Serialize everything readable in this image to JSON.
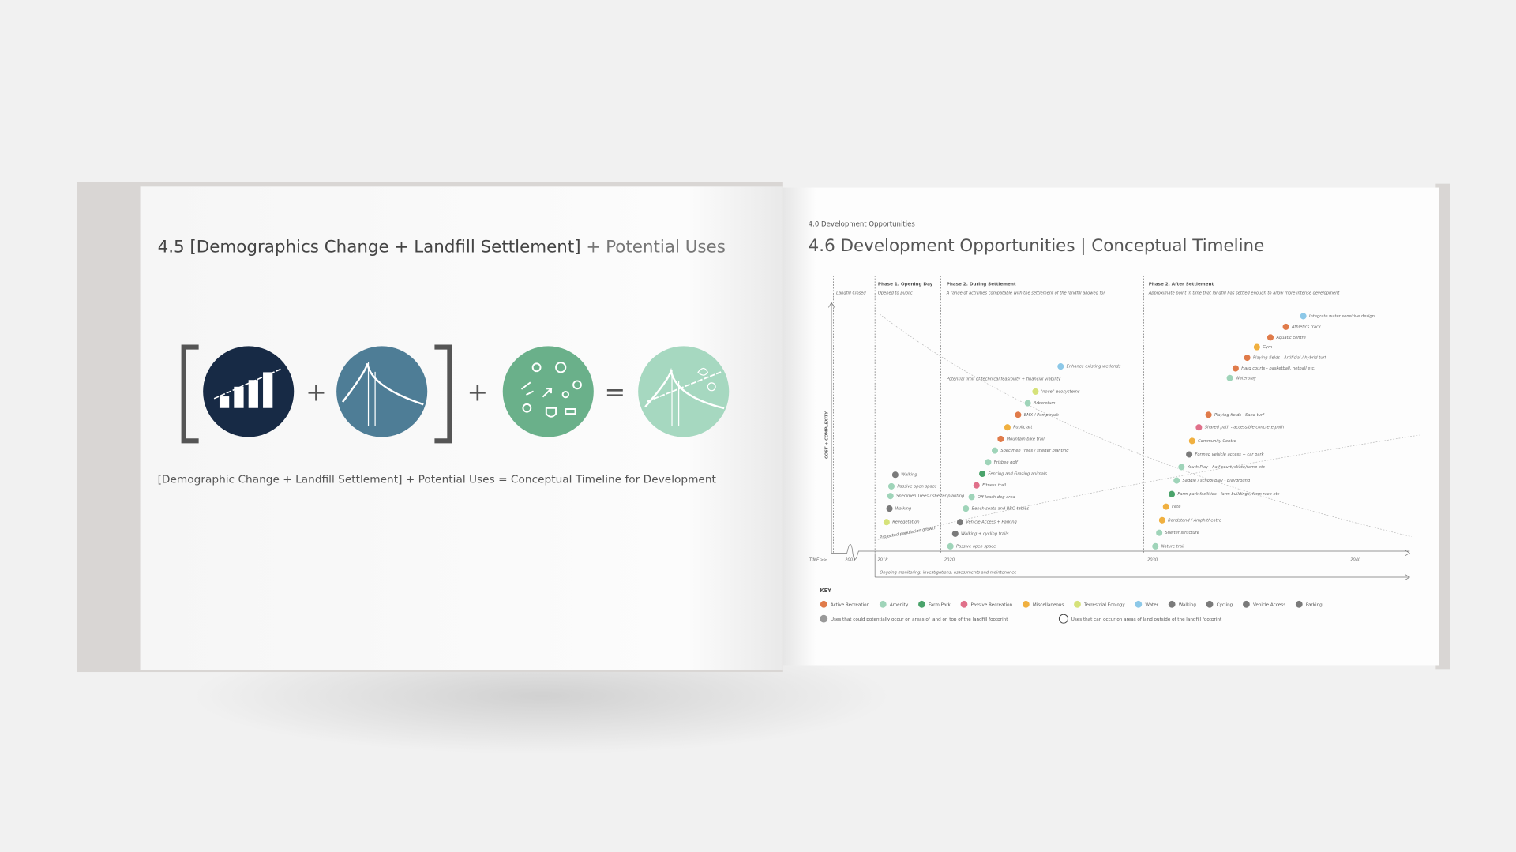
{
  "left_page": {
    "title": "4.5 [Demographics Change + Landfill Settlement]",
    "title_suffix": "+ Potential Uses",
    "caption": "[Demographic Change + Landfill Settlement] + Potential Uses = Conceptual Timeline for Development"
  },
  "right_page": {
    "section": "4.0 Development Opportunities",
    "title": "4.6 Development Opportunities | Conceptual Timeline",
    "y_axis_label": "COST + COMPLEXITY",
    "x_axis_label": "TIME >>",
    "years": [
      "2003",
      "2018",
      "2020",
      "2030",
      "2040"
    ],
    "landfill_closed": "Landfill Closed",
    "phases": [
      {
        "title": "Phase 1. Opening Day",
        "subtitle": "Opened to public"
      },
      {
        "title": "Phase 2. During Settlement",
        "subtitle": "A range of activities compatable with the settlement of the landfill allowed for"
      },
      {
        "title": "Phase 2. After Settlement",
        "subtitle": "Approximate point in time that landfill has settled enough to allow more intense development"
      }
    ],
    "limit_label": "Potential limit of technical feasibility + financial viability",
    "population_label": "Projected population growth",
    "monitoring_label": "Ongoing monitoring, investigations, assessments and maintenance",
    "items": [
      {
        "label": "Walking",
        "category": "Walking"
      },
      {
        "label": "Passive open space",
        "category": "Amenity"
      },
      {
        "label": "Specimen Trees / shelter planting",
        "category": "Amenity"
      },
      {
        "label": "Walking",
        "category": "Walking"
      },
      {
        "label": "Revegetation",
        "category": "Terrestrial Ecology"
      },
      {
        "label": "Passive open space",
        "category": "Amenity"
      },
      {
        "label": "Walking + cycling trails",
        "category": "Cycling"
      },
      {
        "label": "Vehicle Access + Parking",
        "category": "Vehicle Access"
      },
      {
        "label": "Bench seats and BBQ tables",
        "category": "Amenity"
      },
      {
        "label": "Off-leash dog area",
        "category": "Amenity"
      },
      {
        "label": "Fitness trail",
        "category": "Passive Recreation"
      },
      {
        "label": "Fencing and Grazing animals",
        "category": "Farm Park"
      },
      {
        "label": "Frisbee golf",
        "category": "Amenity"
      },
      {
        "label": "Specimen Trees / shelter planting",
        "category": "Amenity"
      },
      {
        "label": "Mountain bike trail",
        "category": "Active Recreation"
      },
      {
        "label": "Public art",
        "category": "Miscellaneous"
      },
      {
        "label": "BMX / Pumptrack",
        "category": "Active Recreation"
      },
      {
        "label": "Arboretum",
        "category": "Amenity"
      },
      {
        "label": "'novel' ecosystems",
        "category": "Terrestrial Ecology"
      },
      {
        "label": "Enhance existing wetlands",
        "category": "Water"
      },
      {
        "label": "Nature trail",
        "category": "Amenity"
      },
      {
        "label": "Shelter structure",
        "category": "Amenity"
      },
      {
        "label": "Bandstand / Amphitheatre",
        "category": "Miscellaneous"
      },
      {
        "label": "Fete",
        "category": "Miscellaneous"
      },
      {
        "label": "Farm park facilities - farm buildings, farm race etc",
        "category": "Farm Park"
      },
      {
        "label": "Saddle / school play - playground",
        "category": "Amenity"
      },
      {
        "label": "Youth Play - half court, skate/ramp etc",
        "category": "Amenity"
      },
      {
        "label": "Formed vehicle access + car park",
        "category": "Vehicle Access"
      },
      {
        "label": "Community Centre",
        "category": "Miscellaneous"
      },
      {
        "label": "Shared path - accessible concrete path",
        "category": "Passive Recreation"
      },
      {
        "label": "Playing fields - Sand turf",
        "category": "Active Recreation"
      },
      {
        "label": "Waterplay",
        "category": "Amenity"
      },
      {
        "label": "Hard courts - basketball, netball etc.",
        "category": "Active Recreation"
      },
      {
        "label": "Playing fields - Artificial / hybrid turf",
        "category": "Active Recreation"
      },
      {
        "label": "Gym",
        "category": "Miscellaneous"
      },
      {
        "label": "Aquatic centre",
        "category": "Active Recreation"
      },
      {
        "label": "Athletics track",
        "category": "Active Recreation"
      },
      {
        "label": "Integrate water sensitive design",
        "category": "Water"
      }
    ],
    "key": {
      "title": "KEY",
      "items": [
        {
          "label": "Active Recreation",
          "color": "#e07b4a"
        },
        {
          "label": "Amenity",
          "color": "#9fd4b9"
        },
        {
          "label": "Farm Park",
          "color": "#4aa36b"
        },
        {
          "label": "Passive Recreation",
          "color": "#e0708a"
        },
        {
          "label": "Miscellaneous",
          "color": "#f0b040"
        },
        {
          "label": "Terrestrial Ecology",
          "color": "#d6e27a"
        },
        {
          "label": "Water",
          "color": "#8cc8e8"
        },
        {
          "label": "Walking",
          "color": "#7a7a7a"
        },
        {
          "label": "Cycling",
          "color": "#7a7a7a"
        },
        {
          "label": "Vehicle Access",
          "color": "#7a7a7a"
        },
        {
          "label": "Parking",
          "color": "#7a7a7a"
        }
      ],
      "notes": [
        "Uses that could potentially occur on areas of land on top of the landfill footprint",
        "Uses that can occur on areas of land outside of the landfill footprint"
      ]
    }
  }
}
